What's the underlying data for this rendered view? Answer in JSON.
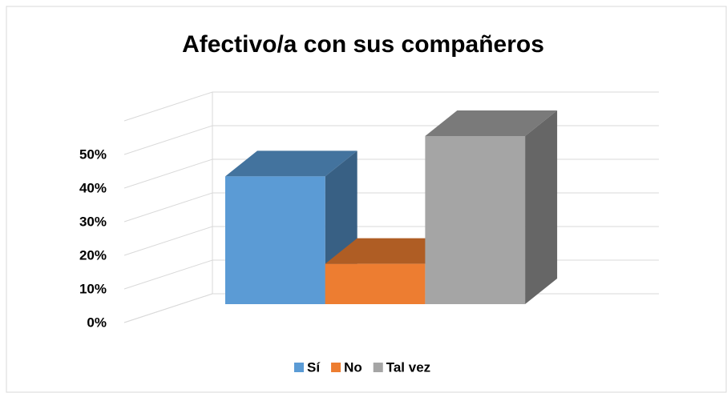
{
  "chart_data": {
    "type": "bar3d",
    "title": "Afectivo/a con sus compañeros",
    "series": [
      {
        "name": "Sí",
        "color": "#5b9bd5",
        "values": [
          38
        ]
      },
      {
        "name": "No",
        "color": "#ed7d31",
        "values": [
          12
        ]
      },
      {
        "name": "Tal vez",
        "color": "#a5a5a5",
        "values": [
          50
        ]
      }
    ],
    "ylim": [
      0,
      60
    ],
    "yticks": [
      {
        "value": 0,
        "label": "0%"
      },
      {
        "value": 10,
        "label": "10%"
      },
      {
        "value": 20,
        "label": "20%"
      },
      {
        "value": 30,
        "label": "30%"
      },
      {
        "value": 40,
        "label": "40%"
      },
      {
        "value": 50,
        "label": "50%"
      }
    ],
    "grid": true,
    "legend": "bottom"
  }
}
